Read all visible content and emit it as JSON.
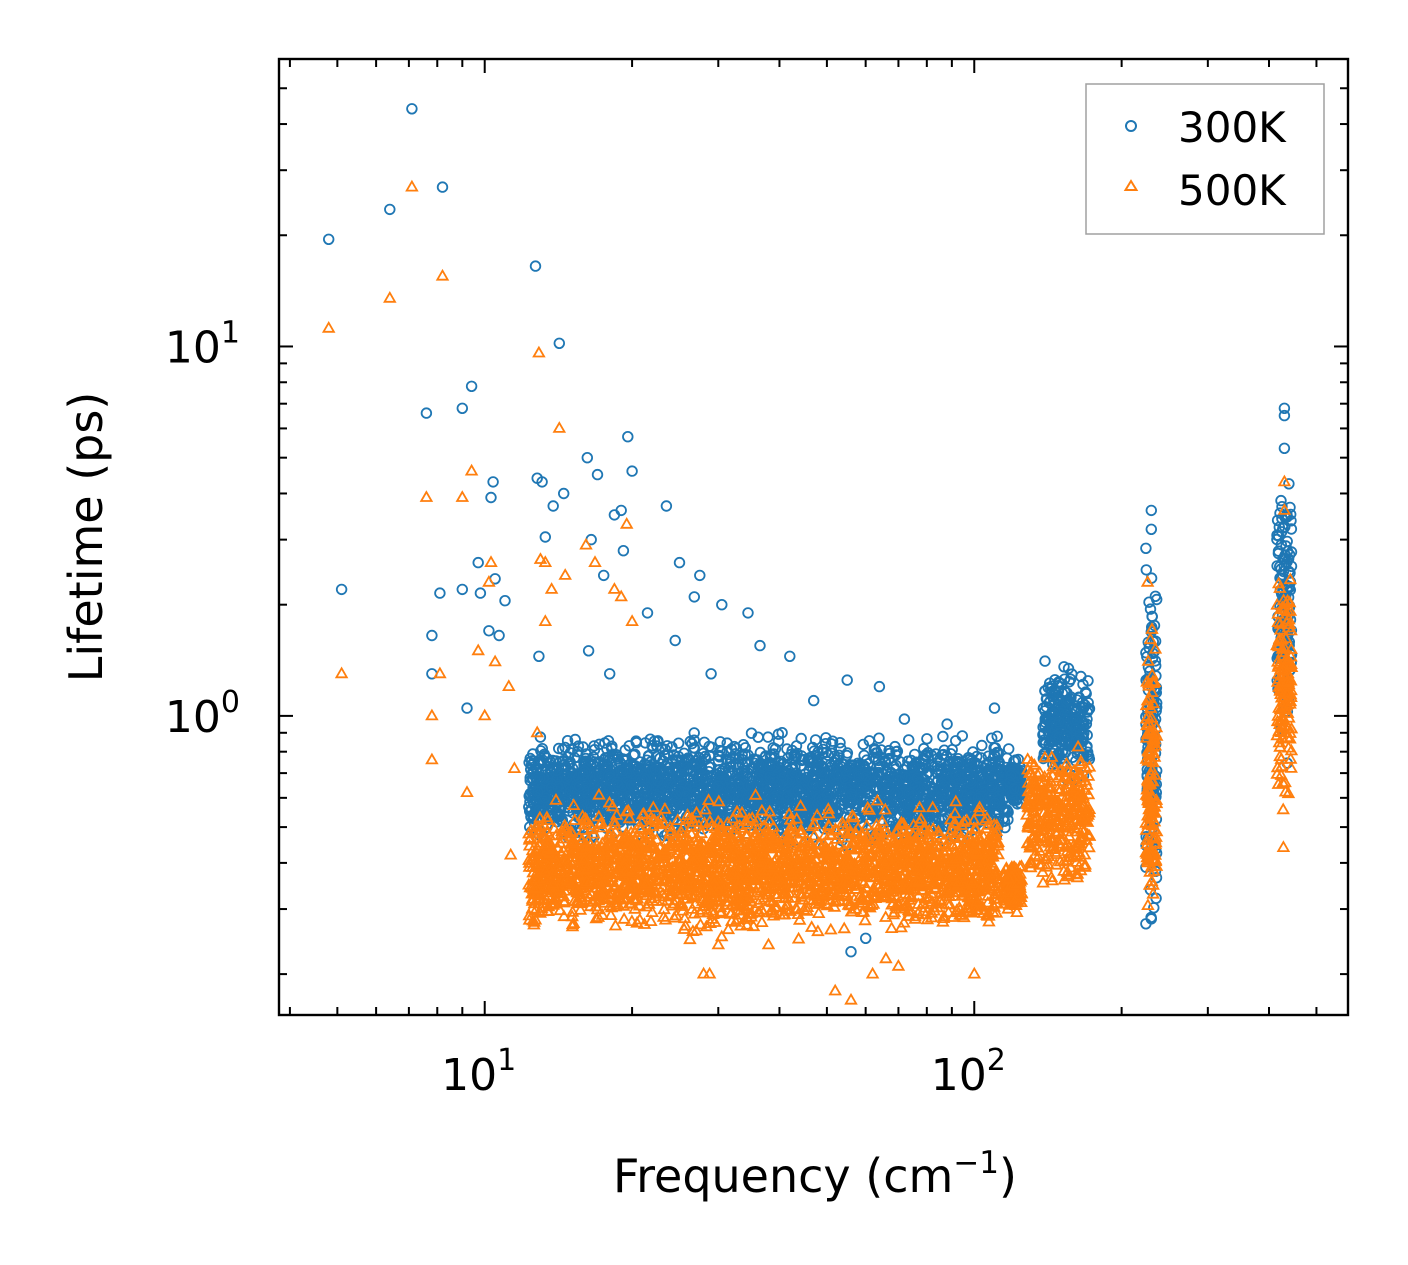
{
  "chart_data": {
    "type": "scatter",
    "xscale": "log",
    "yscale": "log",
    "xlabel": "Frequency (cm",
    "xlabel_sup": "−1",
    "xlabel_end": ")",
    "ylabel": "Lifetime (ps)",
    "xlim": [
      3.8,
      580
    ],
    "ylim": [
      0.155,
      60
    ],
    "x_ticks": [
      {
        "value": 10,
        "base": "10",
        "exp": "1"
      },
      {
        "value": 100,
        "base": "10",
        "exp": "2"
      }
    ],
    "y_ticks": [
      {
        "value": 1,
        "base": "10",
        "exp": "0"
      },
      {
        "value": 10,
        "base": "10",
        "exp": "1"
      }
    ],
    "legend_position": "top-right",
    "series": [
      {
        "name": "300K",
        "marker": "circle",
        "color": "#1f77b4",
        "points": [
          [
            4.8,
            19.5
          ],
          [
            5.1,
            2.2
          ],
          [
            6.4,
            23.5
          ],
          [
            7.1,
            44
          ],
          [
            8.2,
            27
          ],
          [
            7.6,
            6.6
          ],
          [
            9.0,
            6.8
          ],
          [
            9.4,
            7.8
          ],
          [
            7.8,
            1.65
          ],
          [
            8.1,
            2.15
          ],
          [
            9.0,
            2.2
          ],
          [
            9.7,
            2.6
          ],
          [
            9.8,
            2.15
          ],
          [
            10.4,
            4.3
          ],
          [
            10.3,
            3.9
          ],
          [
            10.2,
            1.7
          ],
          [
            10.7,
            1.65
          ],
          [
            11.0,
            2.05
          ],
          [
            10.5,
            2.35
          ],
          [
            9.2,
            1.05
          ],
          [
            7.8,
            1.3
          ],
          [
            12.7,
            16.5
          ],
          [
            14.2,
            10.2
          ],
          [
            12.8,
            4.4
          ],
          [
            13.1,
            4.3
          ],
          [
            14.5,
            4.0
          ],
          [
            13.8,
            3.7
          ],
          [
            13.3,
            3.05
          ],
          [
            16.2,
            5.0
          ],
          [
            17.0,
            4.5
          ],
          [
            16.5,
            3.0
          ],
          [
            19.6,
            5.7
          ],
          [
            20.0,
            4.6
          ],
          [
            18.4,
            3.5
          ],
          [
            19.0,
            3.6
          ],
          [
            19.2,
            2.8
          ],
          [
            17.5,
            2.4
          ],
          [
            23.5,
            3.7
          ],
          [
            25.0,
            2.6
          ],
          [
            26.8,
            2.1
          ],
          [
            27.5,
            2.4
          ],
          [
            30.5,
            2.0
          ],
          [
            34.5,
            1.9
          ],
          [
            12.9,
            1.45
          ],
          [
            12.8,
            0.72
          ],
          [
            13.4,
            0.5
          ],
          [
            14.6,
            0.48
          ],
          [
            16.3,
            1.5
          ],
          [
            18.0,
            1.3
          ],
          [
            21.5,
            1.9
          ],
          [
            24.5,
            1.6
          ],
          [
            28.5,
            0.34
          ],
          [
            29.0,
            1.3
          ],
          [
            36.5,
            1.55
          ],
          [
            42.0,
            1.45
          ],
          [
            47.0,
            1.1
          ],
          [
            55.0,
            1.25
          ],
          [
            64.0,
            1.2
          ],
          [
            72.0,
            0.98
          ],
          [
            88.0,
            0.95
          ],
          [
            110.0,
            1.05
          ],
          [
            56.0,
            0.23
          ],
          [
            60.0,
            0.25
          ]
        ],
        "bands": [
          {
            "x": [
              12.3,
              118
            ],
            "y_low": 0.42,
            "y_high": 0.95
          },
          {
            "x": [
              118,
              125
            ],
            "y_low": 0.55,
            "y_high": 0.78
          },
          {
            "x": [
              138,
              172
            ],
            "y_low": 0.6,
            "y_high": 1.5
          },
          {
            "x": [
              224,
              236
            ],
            "y_low": 0.22,
            "y_high": 3.4
          },
          {
            "x": [
              415,
              445
            ],
            "y_low": 0.7,
            "y_high": 5.5
          }
        ],
        "outliers_high": [
          [
            230,
            3.6
          ],
          [
            230,
            3.2
          ],
          [
            430,
            6.5
          ],
          [
            430,
            6.8
          ],
          [
            430,
            5.3
          ]
        ]
      },
      {
        "name": "500K",
        "marker": "triangle",
        "color": "#ff7f0e",
        "points": [
          [
            4.8,
            11.2
          ],
          [
            5.1,
            1.3
          ],
          [
            6.4,
            13.5
          ],
          [
            7.1,
            27
          ],
          [
            8.2,
            15.5
          ],
          [
            7.6,
            3.9
          ],
          [
            9.0,
            3.9
          ],
          [
            9.4,
            4.6
          ],
          [
            7.8,
            1.0
          ],
          [
            8.1,
            1.3
          ],
          [
            9.7,
            1.5
          ],
          [
            10.3,
            2.6
          ],
          [
            10.2,
            2.3
          ],
          [
            10.5,
            1.4
          ],
          [
            9.2,
            0.62
          ],
          [
            7.8,
            0.76
          ],
          [
            10.0,
            1.0
          ],
          [
            11.2,
            1.2
          ],
          [
            12.9,
            9.6
          ],
          [
            14.2,
            6.0
          ],
          [
            13.0,
            2.65
          ],
          [
            13.3,
            2.6
          ],
          [
            13.7,
            2.2
          ],
          [
            14.6,
            2.4
          ],
          [
            13.3,
            1.8
          ],
          [
            16.1,
            2.9
          ],
          [
            16.8,
            2.6
          ],
          [
            19.5,
            3.3
          ],
          [
            18.4,
            2.2
          ],
          [
            19.0,
            2.1
          ],
          [
            20.0,
            1.8
          ],
          [
            12.5,
            0.3
          ],
          [
            12.7,
            0.28
          ],
          [
            11.3,
            0.42
          ],
          [
            11.5,
            0.72
          ],
          [
            13.5,
            0.45
          ],
          [
            18.5,
            0.27
          ],
          [
            23.4,
            0.28
          ],
          [
            28.0,
            0.2
          ],
          [
            28.8,
            0.2
          ],
          [
            30.0,
            0.24
          ],
          [
            38.0,
            0.24
          ],
          [
            52.0,
            0.18
          ],
          [
            56.0,
            0.17
          ],
          [
            62.0,
            0.2
          ],
          [
            66.0,
            0.22
          ],
          [
            70.0,
            0.21
          ],
          [
            100.0,
            0.2
          ],
          [
            12.8,
            0.9
          ],
          [
            13.0,
            0.5
          ]
        ],
        "bands": [
          {
            "x": [
              12.3,
              112
            ],
            "y_low": 0.24,
            "y_high": 0.62
          },
          {
            "x": [
              115,
              125
            ],
            "y_low": 0.28,
            "y_high": 0.42
          },
          {
            "x": [
              128,
              172
            ],
            "y_low": 0.32,
            "y_high": 0.9
          },
          {
            "x": [
              224,
              236
            ],
            "y_low": 0.2,
            "y_high": 2.1
          },
          {
            "x": [
              415,
              445
            ],
            "y_low": 0.45,
            "y_high": 3.3
          }
        ],
        "outliers_high": [
          [
            226,
            2.3
          ],
          [
            430,
            4.3
          ],
          [
            430,
            3.6
          ],
          [
            428,
            0.44
          ]
        ]
      }
    ]
  }
}
